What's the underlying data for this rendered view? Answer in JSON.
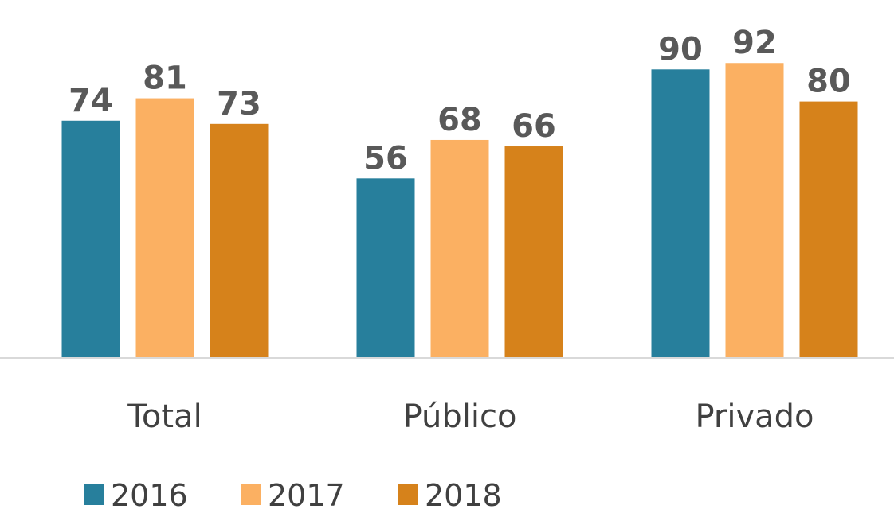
{
  "chart_data": {
    "type": "bar",
    "categories": [
      "Total",
      "Público",
      "Privado"
    ],
    "series": [
      {
        "name": "2016",
        "color": "#277f9c",
        "values": [
          74,
          56,
          90
        ]
      },
      {
        "name": "2017",
        "color": "#fbb062",
        "values": [
          81,
          68,
          92
        ]
      },
      {
        "name": "2018",
        "color": "#d6821b",
        "values": [
          73,
          66,
          80
        ]
      }
    ]
  }
}
